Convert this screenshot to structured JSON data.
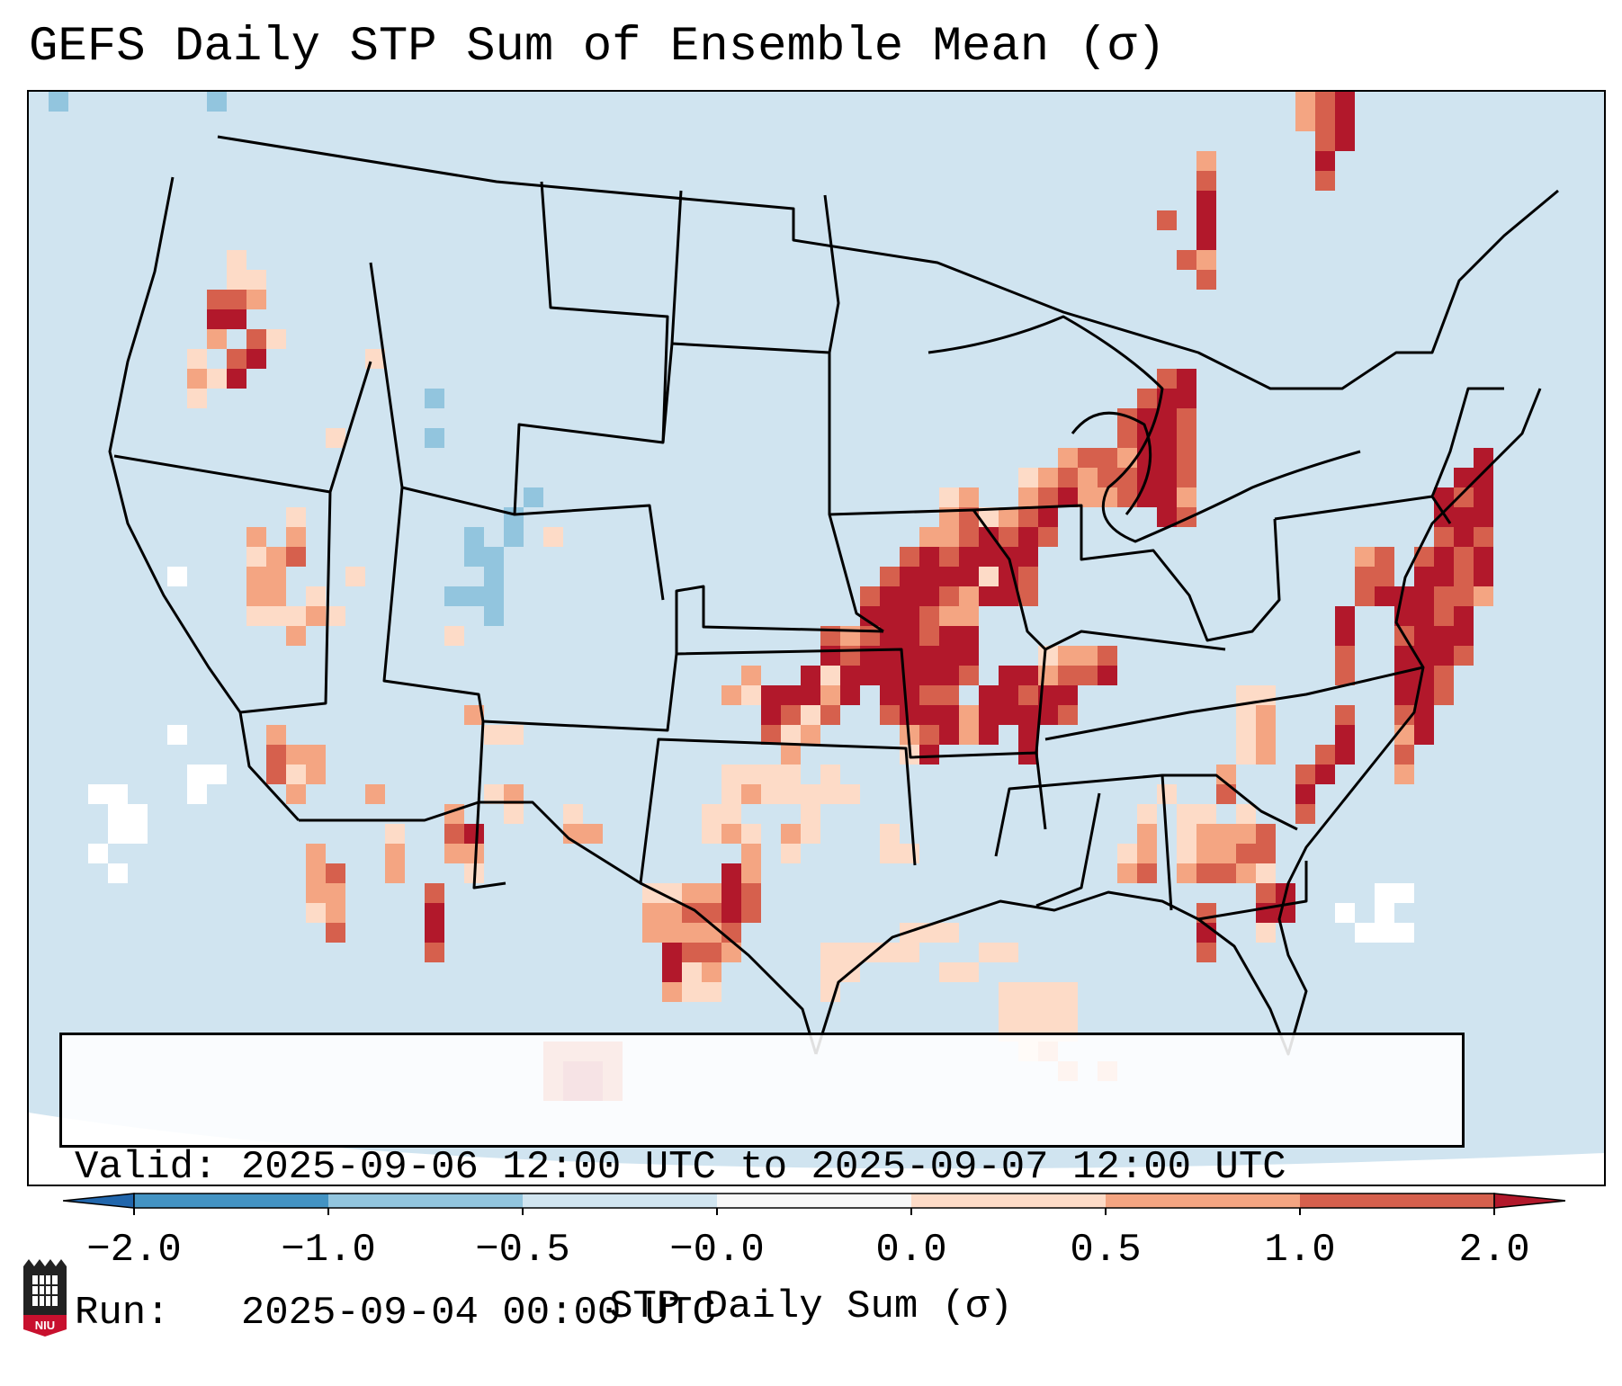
{
  "title": "GEFS Daily STP Sum of Ensemble Mean (σ)",
  "info": {
    "valid_label": "Valid:",
    "valid_value": "2025-09-06 12:00 UTC to 2025-09-07 12:00 UTC",
    "run_label": "Run:",
    "run_value": "2025-09-04 00:00 UTC"
  },
  "colorbar": {
    "label": "STP Daily Sum (σ)",
    "ticks": [
      "−2.0",
      "−1.0",
      "−0.5",
      "−0.0",
      "0.0",
      "0.5",
      "1.0",
      "2.0"
    ],
    "colors": [
      "#2166ac",
      "#4393c3",
      "#92c5de",
      "#d1e5f0",
      "#f7f7f7",
      "#fddbc7",
      "#f4a582",
      "#d6604d",
      "#b2182b"
    ],
    "extend": "both"
  },
  "map": {
    "background_color": "#d0e4f0",
    "region": "Contiguous United States",
    "high_anomaly_regions": [
      "Appalachians",
      "Northeast",
      "Western Atlantic",
      "Texas Gulf Coast",
      "Alabama"
    ]
  },
  "logo": {
    "text": "NIU"
  }
}
